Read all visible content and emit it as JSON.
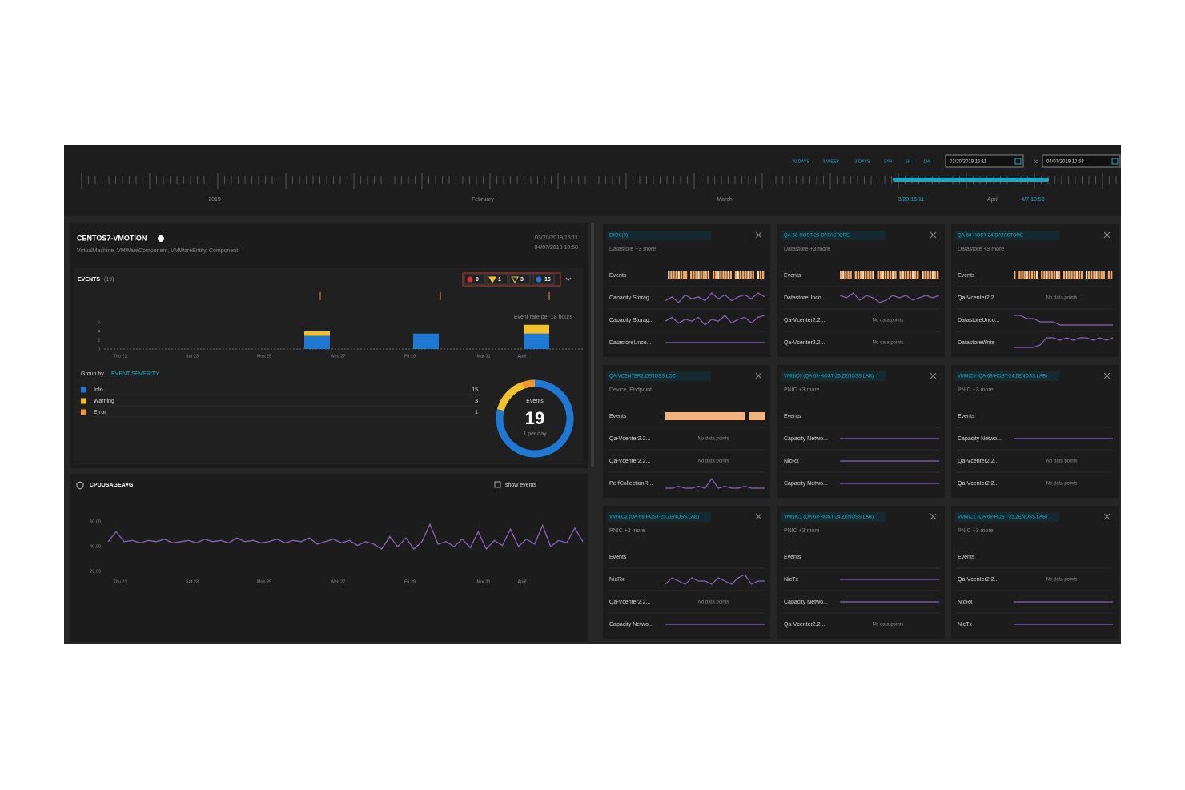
{
  "timeline": {
    "ranges": [
      "30 DAYS",
      "1 WEEK",
      "3 DAYS",
      "24H",
      "1H",
      "1M"
    ],
    "start": "03/20/2019 15:11",
    "to": "to",
    "end": "04/07/2019 10:58",
    "labels": [
      "2019",
      "February",
      "March",
      "3/20 15:11",
      "April",
      "4/7 10:58"
    ]
  },
  "entity": {
    "title": "CENTOS7-VMOTION",
    "subtitle": "VirtualMachine, VMWareComponent, VMWareEntity, Component",
    "start": "03/20/2019 15:11",
    "end": "04/07/2019 10:58"
  },
  "events_chart": {
    "label": "EVENTS",
    "count_label": "(19)",
    "badges": [
      0,
      1,
      3,
      15
    ],
    "rate": "Event rate per 18 hours",
    "yticks": [
      0,
      2,
      4,
      6
    ],
    "xlabels": [
      "Thu 21",
      "Sat 23",
      "Mon 25",
      "Wed 27",
      "Fri 29",
      "Mar 31",
      "April"
    ],
    "bars": {
      "info": [
        3,
        3.5,
        3.5
      ],
      "warning": [
        1,
        0,
        2
      ]
    }
  },
  "severity": {
    "group_by": "Group by",
    "field": "EVENT SEVERITY",
    "items": [
      {
        "name": "Info",
        "count": 15,
        "color": "#1f78d1"
      },
      {
        "name": "Warning",
        "count": 3,
        "color": "#f2c12e"
      },
      {
        "name": "Error",
        "count": 1,
        "color": "#f0962e"
      }
    ],
    "donut_label": "Events",
    "donut_total": 19,
    "donut_rate": "1 per day"
  },
  "cpu_chart": {
    "title": "CPUUSAGEAVG",
    "show_events": "show events",
    "yticks": [
      {
        "value": 60,
        "label": "60.00"
      },
      {
        "value": 40,
        "label": "40.00"
      },
      {
        "value": 20,
        "label": "20.00"
      }
    ],
    "xlabels": [
      "Thu 21",
      "Sat 23",
      "Mon 25",
      "Wed 27",
      "Fri 29",
      "Mar 31",
      "April"
    ],
    "values": [
      44,
      52,
      44,
      45,
      43,
      45,
      44,
      46,
      43,
      44,
      45,
      43,
      46,
      44,
      45,
      43,
      47,
      44,
      45,
      43,
      44,
      46,
      43,
      45,
      44,
      47,
      42,
      44,
      46,
      43,
      45,
      41,
      44,
      42,
      38,
      48,
      40,
      47,
      38,
      44,
      58,
      42,
      44,
      40,
      46,
      39,
      52,
      38,
      45,
      41,
      54,
      40,
      46,
      42,
      57,
      40,
      45,
      43,
      55,
      44
    ],
    "color": "#8a63b8"
  },
  "cards": [
    {
      "title": "DISK (3)",
      "subtitle": "Datastore +3 more",
      "rows": [
        {
          "label": "Events"
        },
        {
          "label": "Capacity Storag...",
          "spark": [
            3,
            5,
            2,
            6,
            4,
            5,
            3,
            7,
            4,
            6,
            3,
            5,
            6,
            4,
            7,
            5
          ]
        },
        {
          "label": "Capacity Storag...",
          "spark": [
            4,
            6,
            3,
            5,
            4,
            6,
            2,
            5,
            4,
            7,
            3,
            5,
            6,
            3,
            6,
            7
          ]
        },
        {
          "label": "DatastoreUnco...",
          "spark": [
            5,
            5,
            5,
            5
          ]
        }
      ]
    },
    {
      "title": "QA-68-HOST-25-DATASTORE",
      "subtitle": "Datastore +3 more",
      "rows": [
        {
          "label": "Events"
        },
        {
          "label": "DatastoreUnco...",
          "spark": [
            6,
            5,
            7,
            4,
            6,
            5,
            3,
            4,
            6,
            5,
            6,
            4,
            5,
            6,
            5,
            6
          ]
        },
        {
          "label": "Qa-Vcenter2.2...",
          "status": "No data points"
        },
        {
          "label": "Qa-Vcenter2.2...",
          "status": "No data points"
        }
      ]
    },
    {
      "title": "QA-68-HOST-24-DATASTORE",
      "subtitle": "Datastore +3 more",
      "rows": [
        {
          "label": "Events"
        },
        {
          "label": "Qa-Vcenter2.2...",
          "status": "No data points"
        },
        {
          "label": "DatastoreUnco...",
          "spark": [
            7,
            7,
            6,
            6,
            5,
            5,
            5,
            4,
            4,
            4,
            4,
            4,
            4,
            4,
            4,
            4
          ]
        },
        {
          "label": "DatastoreWrite",
          "spark": [
            2,
            2,
            2,
            2,
            3,
            6,
            6,
            5,
            6,
            5,
            6,
            6,
            5,
            6,
            5,
            6
          ]
        }
      ]
    },
    {
      "title": "QA-VCENTER2.ZENOSS.LOC",
      "subtitle": "Device, Endpoint",
      "rows": [
        {
          "label": "Events"
        },
        {
          "label": "Qa-Vcenter2.2...",
          "status": "No data points"
        },
        {
          "label": "Qa-Vcenter2.2...",
          "status": "No data points"
        },
        {
          "label": "PerfCollectionR...",
          "spark": [
            3,
            3,
            4,
            3,
            3,
            4,
            3,
            8,
            3,
            4,
            3,
            3,
            4,
            3,
            3,
            3
          ]
        }
      ]
    },
    {
      "title": "VMNIC0 (QA-68-HOST-25.ZENOSS.LAB)",
      "subtitle": "PNIC +3 more",
      "rows": [
        {
          "label": "Events"
        },
        {
          "label": "Capacity Netwo...",
          "spark": [
            5,
            5,
            5,
            5
          ]
        },
        {
          "label": "NicRx",
          "spark": [
            5,
            5,
            5,
            5
          ]
        },
        {
          "label": "Capacity Netwo...",
          "spark": [
            5,
            5,
            5,
            5
          ]
        }
      ]
    },
    {
      "title": "VMNIC0 (QA-68-HOST-24.ZENOSS.LAB)",
      "subtitle": "PNIC +3 more",
      "rows": [
        {
          "label": "Events"
        },
        {
          "label": "Capacity Netwo...",
          "spark": [
            5,
            5,
            5,
            5
          ]
        },
        {
          "label": "Qa-Vcenter2.2...",
          "status": "No data points"
        },
        {
          "label": "Qa-Vcenter2.2...",
          "status": "No data points"
        }
      ]
    },
    {
      "title": "VMNIC2 (QA-68-HOST-25.ZENOSS.LAB)",
      "subtitle": "PNIC +3 more",
      "rows": [
        {
          "label": "Events"
        },
        {
          "label": "NicRx",
          "spark": [
            4,
            6,
            5,
            4,
            6,
            5,
            5,
            4,
            6,
            5,
            4,
            6,
            7,
            4,
            5,
            5
          ]
        },
        {
          "label": "Qa-Vcenter2.2...",
          "status": "No data points"
        },
        {
          "label": "Capacity Netwo...",
          "spark": [
            5,
            5,
            5,
            5
          ]
        }
      ]
    },
    {
      "title": "VMNIC1 (QA-68-HOST-24.ZENOSS.LAB)",
      "subtitle": "PNIC +3 more",
      "rows": [
        {
          "label": "Events"
        },
        {
          "label": "NicTx",
          "spark": [
            5,
            5,
            5,
            5
          ]
        },
        {
          "label": "Capacity Netwo...",
          "spark": [
            5,
            5,
            5,
            5
          ]
        },
        {
          "label": "Qa-Vcenter2.2...",
          "status": "No data points"
        }
      ]
    },
    {
      "title": "VMNIC1 (QA-68-HOST-25.ZENOSS.LAB)",
      "subtitle": "PNIC +3 more",
      "rows": [
        {
          "label": "Events"
        },
        {
          "label": "Qa-Vcenter2.2...",
          "status": "No data points"
        },
        {
          "label": "NicRx",
          "spark": [
            5,
            5,
            5,
            5
          ]
        },
        {
          "label": "NicTx",
          "spark": [
            5,
            5,
            5,
            5
          ]
        }
      ]
    }
  ]
}
